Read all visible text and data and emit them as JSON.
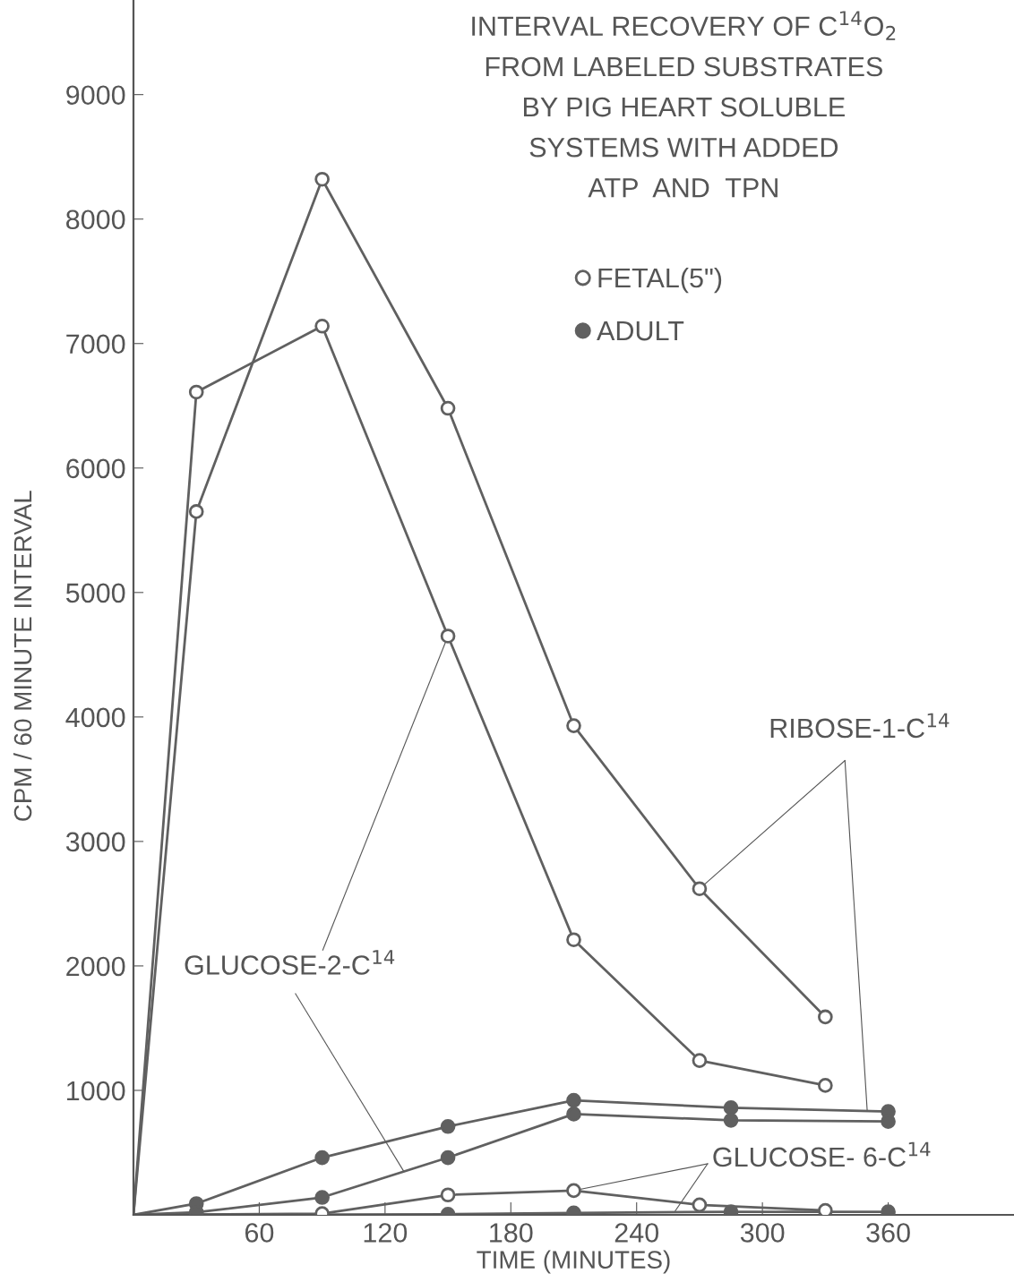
{
  "chart_data": {
    "type": "line",
    "title": "INTERVAL RECOVERY OF C$^{14}$O$_{2}$\nFROM LABELED SUBSTRATES\nBY PIG HEART SOLUBLE\nSYSTEMS WITH ADDED\nATP  AND  TPN",
    "xlabel": "TIME (MINUTES)",
    "ylabel": "CPM / 60 MINUTE INTERVAL",
    "xlim": [
      0,
      420
    ],
    "xticks": [
      60,
      120,
      180,
      240,
      300,
      360
    ],
    "ylim": [
      0,
      9760
    ],
    "yticks": [
      1000,
      2000,
      3000,
      4000,
      5000,
      6000,
      7000,
      8000,
      9000
    ],
    "grid": false,
    "legend": "top right",
    "line_style": "solid",
    "series": [
      {
        "name": "FETAL(5\")",
        "color": "#606060",
        "marker": "circle",
        "colors": [
          null,
          "#ffffff",
          "#ffffff",
          "#ffffff",
          "#ffffff",
          "#ffffff",
          "#ffffff"
        ],
        "x": [
          0,
          30,
          90,
          150,
          210,
          270,
          330
        ],
        "values": [
          0,
          5650,
          8320,
          6480,
          3930,
          2620,
          1590
        ]
      },
      {
        "name": "ADULT",
        "color": "#606060",
        "marker": "circle",
        "colors": [
          null,
          "#606060",
          "#606060",
          "#606060",
          "#606060",
          "#606060",
          "#606060"
        ],
        "x": [
          0,
          30,
          90,
          150,
          210,
          285,
          360
        ],
        "values": [
          0,
          90,
          460,
          710,
          920,
          860,
          830
        ]
      },
      {
        "color": "#606060",
        "marker": "circle",
        "colors": [
          null,
          "#ffffff",
          "#ffffff",
          "#ffffff",
          "#ffffff",
          "#ffffff",
          "#ffffff"
        ],
        "x": [
          0,
          30,
          90,
          150,
          210,
          270,
          330
        ],
        "values": [
          0,
          6610,
          7140,
          4650,
          2210,
          1240,
          1040
        ]
      },
      {
        "color": "#606060",
        "marker": "circle",
        "colors": [
          null,
          "#606060",
          "#606060",
          "#606060",
          "#606060",
          "#606060",
          "#606060"
        ],
        "x": [
          0,
          30,
          90,
          150,
          210,
          285,
          360
        ],
        "values": [
          0,
          20,
          140,
          460,
          810,
          760,
          750
        ]
      },
      {
        "color": "#606060",
        "marker": "circle",
        "colors": [
          null,
          "#ffffff",
          "#ffffff",
          "#ffffff",
          "#ffffff",
          "#ffffff"
        ],
        "x": [
          0,
          90,
          150,
          210,
          270,
          330
        ],
        "values": [
          0,
          10,
          160,
          195,
          80,
          35
        ]
      },
      {
        "color": "#606060",
        "marker": "circle",
        "colors": [
          null,
          "#606060",
          "#606060",
          "#606060",
          "#606060"
        ],
        "x": [
          0,
          150,
          210,
          285,
          360
        ],
        "values": [
          0,
          5,
          15,
          25,
          25
        ]
      }
    ],
    "annotations": [
      {
        "text": "RIBOSE-1-C$^{14}$",
        "x": 270,
        "y": 2620
      },
      {
        "text": "GLUCOSE-2-C$^{14}$",
        "x": 150,
        "y": 4650
      },
      {
        "text": "GLUCOSE- 6-C$^{14}$",
        "x": 210,
        "y": 195
      }
    ]
  }
}
